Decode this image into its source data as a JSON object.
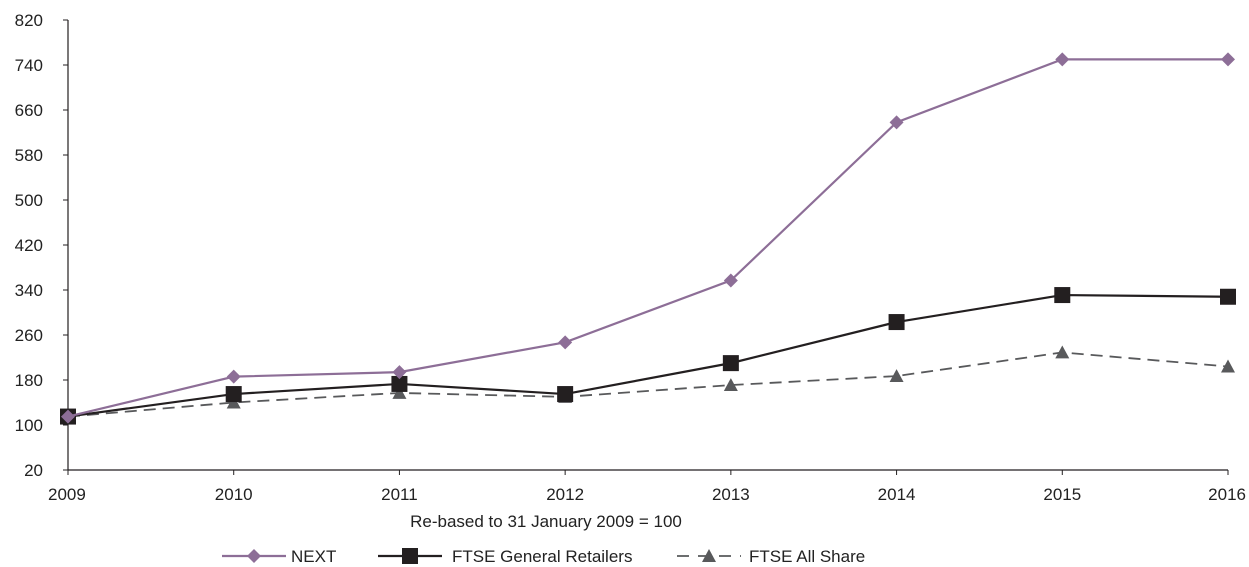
{
  "chart_data": {
    "type": "line",
    "title": "",
    "xlabel": "Re-based to 31 January 2009 = 100",
    "ylabel": "",
    "x": [
      "2009",
      "2010",
      "2011",
      "2012",
      "2013",
      "2014",
      "2015",
      "2016"
    ],
    "ylim": [
      20,
      820
    ],
    "yticks": [
      20,
      100,
      180,
      260,
      340,
      420,
      500,
      580,
      660,
      740,
      820
    ],
    "grid": false,
    "legend_position": "bottom",
    "series": [
      {
        "name": "NEXT",
        "values": [
          115,
          186,
          194,
          247,
          357,
          638,
          750,
          750
        ],
        "color": "#8d6e97",
        "marker": "diamond",
        "dash": "solid"
      },
      {
        "name": "FTSE General Retailers",
        "values": [
          115,
          155,
          173,
          155,
          210,
          283,
          331,
          328
        ],
        "color": "#231f20",
        "marker": "square",
        "dash": "solid"
      },
      {
        "name": "FTSE All Share",
        "values": [
          115,
          140,
          157,
          150,
          171,
          187,
          229,
          204
        ],
        "color": "#58595b",
        "marker": "triangle",
        "dash": "dashed"
      }
    ]
  }
}
